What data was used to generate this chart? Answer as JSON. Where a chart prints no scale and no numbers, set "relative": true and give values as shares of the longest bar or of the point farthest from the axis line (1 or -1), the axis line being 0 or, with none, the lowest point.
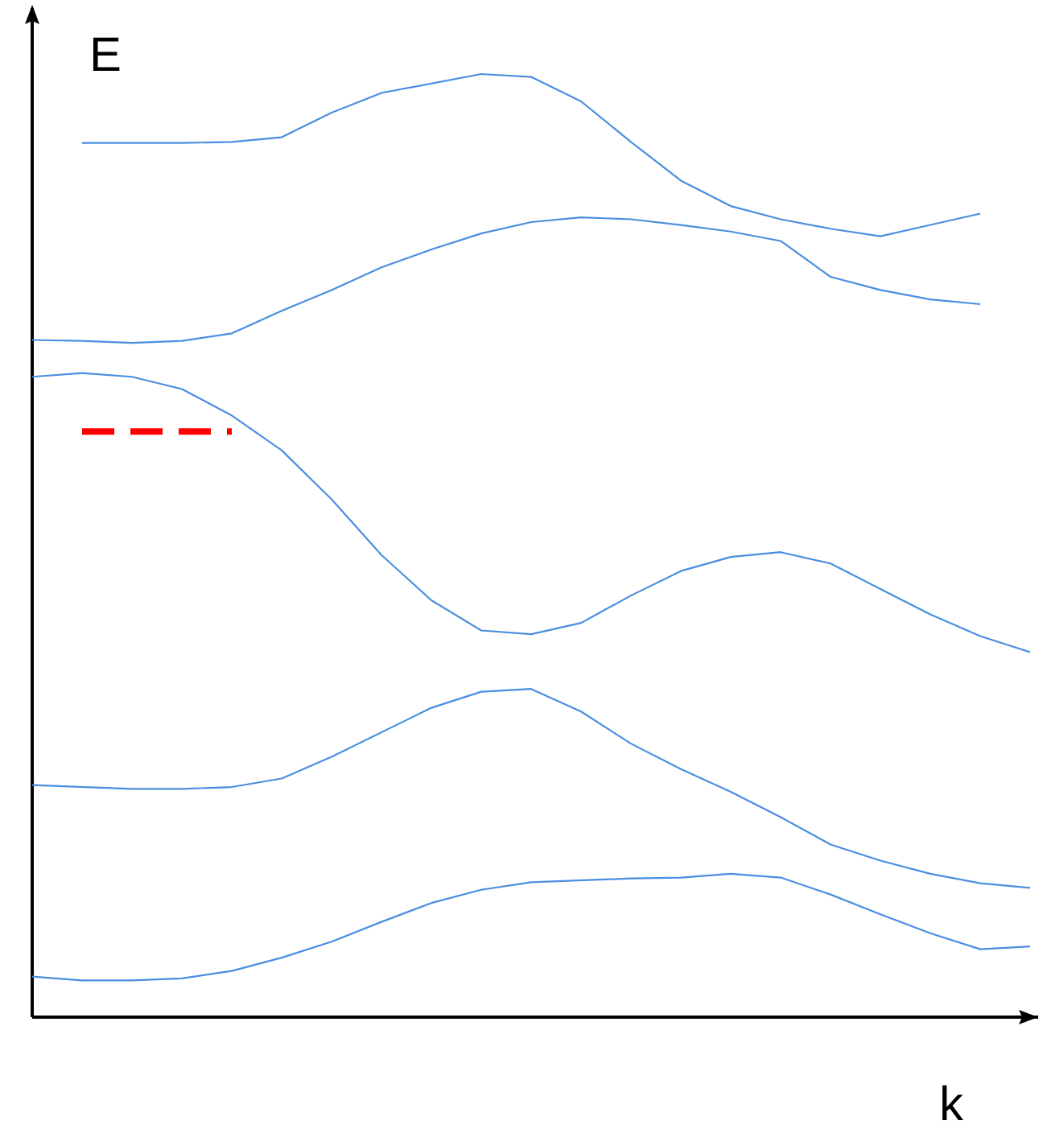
{
  "chart_data": {
    "type": "line",
    "relative": true,
    "xlabel": "k",
    "ylabel": "E",
    "marker": "none",
    "categories": [
      null,
      null,
      null,
      null,
      null,
      null,
      null,
      null,
      null,
      null,
      null,
      null,
      null,
      null,
      null,
      null,
      null,
      null,
      null,
      null,
      null
    ],
    "series": [
      {
        "color": "#4a8ee0",
        "values": [
          null,
          0.927,
          0.927,
          0.927,
          0.928,
          0.933,
          0.959,
          0.98,
          0.99,
          1.0,
          0.997,
          0.971,
          0.928,
          0.887,
          0.86,
          0.846,
          0.836,
          0.828,
          0.84,
          0.852,
          null
        ]
      },
      {
        "color": "#4a8ee0",
        "values": [
          0.718,
          0.717,
          0.715,
          0.717,
          0.725,
          0.749,
          0.771,
          0.795,
          0.814,
          0.831,
          0.843,
          0.848,
          0.846,
          0.84,
          0.833,
          0.823,
          0.785,
          0.771,
          0.761,
          0.756,
          null
        ]
      },
      {
        "color": "#4a8ee0",
        "values": [
          0.679,
          0.683,
          0.679,
          0.666,
          0.638,
          0.601,
          0.549,
          0.49,
          0.442,
          0.41,
          0.406,
          0.418,
          0.447,
          0.473,
          0.488,
          0.493,
          0.481,
          0.454,
          0.427,
          0.404,
          0.387
        ]
      },
      {
        "color": "#4a8ee0",
        "values": [
          0.246,
          0.244,
          0.242,
          0.242,
          0.244,
          0.253,
          0.276,
          0.302,
          0.328,
          0.345,
          0.348,
          0.324,
          0.29,
          0.263,
          0.239,
          0.212,
          0.183,
          0.166,
          0.152,
          0.142,
          0.137
        ]
      },
      {
        "color": "#4a8ee0",
        "values": [
          0.043,
          0.039,
          0.039,
          0.041,
          0.049,
          0.063,
          0.08,
          0.101,
          0.121,
          0.135,
          0.143,
          0.145,
          0.147,
          0.148,
          0.152,
          0.148,
          0.13,
          0.109,
          0.089,
          0.072,
          0.075
        ]
      },
      {
        "color": "#ff0000",
        "line_style": "dashed",
        "values": [
          null,
          0.621,
          0.621,
          0.621,
          0.621,
          null,
          null,
          null,
          null,
          null,
          null,
          null,
          null,
          null,
          null,
          null,
          null,
          null,
          null,
          null,
          null
        ]
      }
    ]
  }
}
